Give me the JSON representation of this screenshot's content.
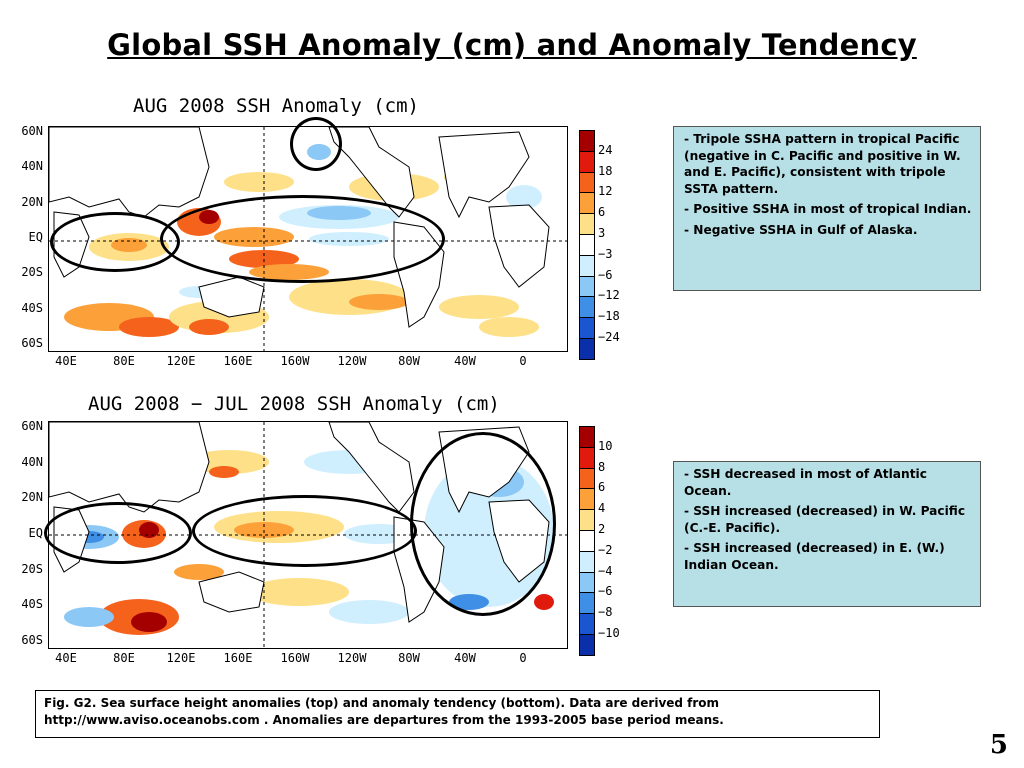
{
  "slide": {
    "title": "Global SSH Anomaly (cm) and Anomaly Tendency",
    "page_number": "5"
  },
  "top_map": {
    "title": "AUG 2008 SSH Anomaly (cm)",
    "lat_labels": [
      "60N",
      "40N",
      "20N",
      "EQ",
      "20S",
      "40S",
      "60S"
    ],
    "lon_labels": [
      "40E",
      "80E",
      "120E",
      "160E",
      "160W",
      "120W",
      "80W",
      "40W",
      "0"
    ],
    "colorbar_labels": [
      "24",
      "18",
      "12",
      "6",
      "3",
      "−3",
      "−6",
      "−12",
      "−18",
      "−24"
    ],
    "colorbar_colors": [
      "#a50000",
      "#e11a0e",
      "#f5621c",
      "#fca13a",
      "#fde087",
      "#ffffff",
      "#cfefff",
      "#8cc8f5",
      "#3f8fe6",
      "#1a56d0",
      "#0a2fa8"
    ]
  },
  "bottom_map": {
    "title": "AUG 2008 − JUL 2008 SSH Anomaly (cm)",
    "lat_labels": [
      "60N",
      "40N",
      "20N",
      "EQ",
      "20S",
      "40S",
      "60S"
    ],
    "lon_labels": [
      "40E",
      "80E",
      "120E",
      "160E",
      "160W",
      "120W",
      "80W",
      "40W",
      "0"
    ],
    "colorbar_labels": [
      "10",
      "8",
      "6",
      "4",
      "2",
      "−2",
      "−4",
      "−6",
      "−8",
      "−10"
    ],
    "colorbar_colors": [
      "#a50000",
      "#e11a0e",
      "#f5621c",
      "#fca13a",
      "#fde087",
      "#ffffff",
      "#cfefff",
      "#8cc8f5",
      "#3f8fe6",
      "#1a56d0",
      "#0a2fa8"
    ]
  },
  "top_notes": [
    "- Tripole SSHA pattern in tropical Pacific (negative in C. Pacific and positive in W. and E. Pacific), consistent with tripole SSTA pattern.",
    "- Positive SSHA in most of tropical Indian.",
    "- Negative SSHA in Gulf of Alaska."
  ],
  "bottom_notes": [
    "-  SSH decreased in most of Atlantic Ocean.",
    "- SSH increased (decreased) in W. Pacific (C.-E. Pacific).",
    "- SSH increased (decreased) in E. (W.) Indian Ocean."
  ],
  "caption": {
    "line1": "Fig. G2. Sea surface height anomalies (top) and anomaly tendency (bottom). Data are derived from",
    "line2": "http://www.aviso.oceanobs.com  . Anomalies are departures from the 1993-2005 base period means."
  }
}
